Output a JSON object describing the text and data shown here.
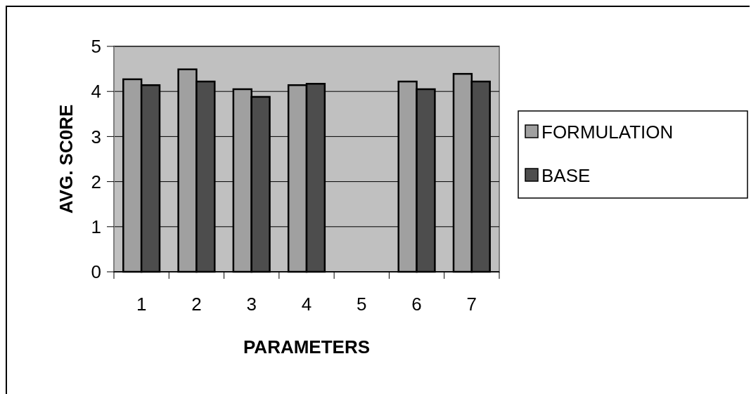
{
  "chart_data": {
    "type": "bar",
    "xlabel": "PARAMETERS",
    "ylabel": "AVG. SC0RE",
    "categories": [
      "1",
      "2",
      "3",
      "4",
      "5",
      "6",
      "7"
    ],
    "series": [
      {
        "name": "FORMULATION",
        "color": "#a0a0a0",
        "values": [
          4.27,
          4.49,
          4.05,
          4.14,
          null,
          4.22,
          4.39
        ]
      },
      {
        "name": "BASE",
        "color": "#4d4d4d",
        "values": [
          4.14,
          4.22,
          3.88,
          4.17,
          null,
          4.05,
          4.22
        ]
      }
    ],
    "ylim": [
      0,
      5
    ],
    "yticks": [
      0,
      1,
      2,
      3,
      4,
      5
    ],
    "grid": "y",
    "legend": "right"
  }
}
